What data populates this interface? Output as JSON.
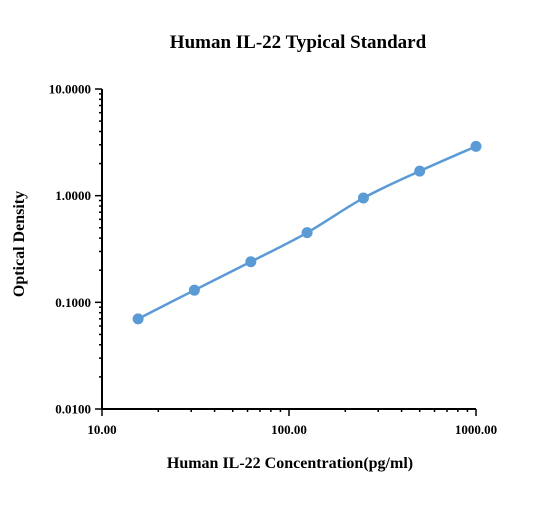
{
  "chart_data": {
    "type": "line",
    "title": "Human IL-22 Typical Standard",
    "xlabel": "Human IL-22  Concentration(pg/ml)",
    "ylabel": "Optical Density",
    "x_scale": "log",
    "y_scale": "log",
    "xlim": [
      10,
      1000
    ],
    "ylim": [
      0.01,
      10
    ],
    "x_tick_labels": [
      "10.00",
      "100.00",
      "1000.00"
    ],
    "x_tick_values": [
      10,
      100,
      1000
    ],
    "y_tick_labels": [
      "0.0100",
      "0.1000",
      "1.0000",
      "10.0000"
    ],
    "y_tick_values": [
      0.01,
      0.1,
      1,
      10
    ],
    "grid": false,
    "legend": "none",
    "series": [
      {
        "color": "#5b9bd5",
        "x": [
          15.6,
          31.2,
          62.5,
          125,
          250,
          500,
          1000
        ],
        "y": [
          0.07,
          0.13,
          0.24,
          0.45,
          0.95,
          1.7,
          2.9
        ]
      }
    ]
  }
}
